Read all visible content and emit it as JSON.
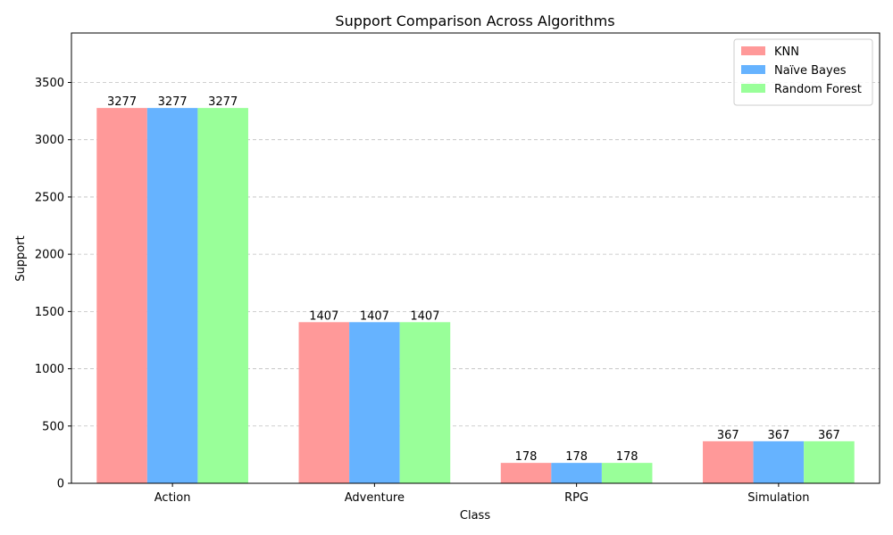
{
  "chart_data": {
    "type": "bar",
    "title": "Support Comparison Across Algorithms",
    "xlabel": "Class",
    "ylabel": "Support",
    "categories": [
      "Action",
      "Adventure",
      "RPG",
      "Simulation"
    ],
    "series": [
      {
        "name": "KNN",
        "values": [
          3277,
          1407,
          178,
          367
        ],
        "color": "#ff9999"
      },
      {
        "name": "Naïve Bayes",
        "values": [
          3277,
          1407,
          178,
          367
        ],
        "color": "#66b3ff"
      },
      {
        "name": "Random Forest",
        "values": [
          3277,
          1407,
          178,
          367
        ],
        "color": "#99ff99"
      }
    ],
    "ylim": [
      0,
      3932
    ],
    "yticks": [
      0,
      500,
      1000,
      1500,
      2000,
      2500,
      3000,
      3500
    ],
    "grid": "y-dashed",
    "legend_position": "top-right"
  }
}
